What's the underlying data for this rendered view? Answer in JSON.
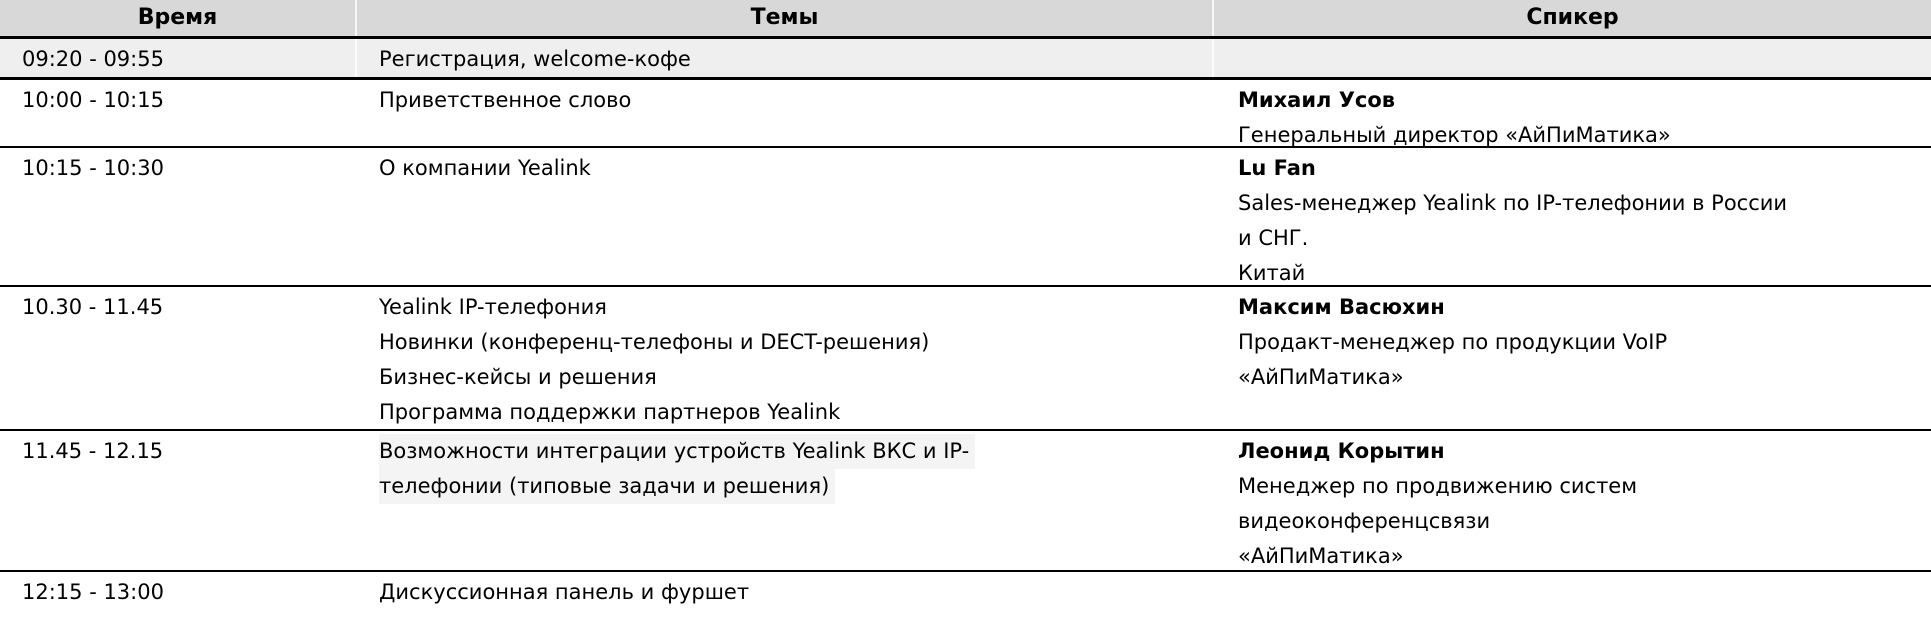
{
  "table": {
    "columns": [
      {
        "key": "time",
        "label": "Время"
      },
      {
        "key": "topics",
        "label": "Темы"
      },
      {
        "key": "speaker",
        "label": "Спикер"
      }
    ],
    "rows": [
      {
        "time": "09:20 - 09:55",
        "topics": [
          "Регистрация, welcome-кофе"
        ],
        "topics_highlighted": false,
        "speaker_name": "",
        "speaker_lines": [],
        "shaded": true
      },
      {
        "time": "10:00 - 10:15",
        "topics": [
          "Приветственное слово"
        ],
        "topics_highlighted": false,
        "speaker_name": "Михаил Усов",
        "speaker_lines": [
          "Генеральный директор «АйПиМатика»"
        ],
        "shaded": false
      },
      {
        "time": "10:15 - 10:30",
        "topics": [
          "О компании Yealink"
        ],
        "topics_highlighted": false,
        "speaker_name": "Lu Fan",
        "speaker_lines": [
          "Sales-менеджер Yealink по IP-телефонии в России",
          "и СНГ.",
          "Китай"
        ],
        "shaded": false
      },
      {
        "time": "10.30 - 11.45",
        "topics": [
          "Yealink IP-телефония",
          "Новинки (конференц-телефоны и DECT-решения)",
          "Бизнес-кейсы и решения",
          "Программа поддержки партнеров Yealink"
        ],
        "topics_highlighted": false,
        "speaker_name": "Максим Васюхин",
        "speaker_lines": [
          "Продакт-менеджер по продукции VoIP",
          "«АйПиМатика»"
        ],
        "shaded": false
      },
      {
        "time": "11.45 - 12.15",
        "topics": [
          "Возможности интеграции устройств Yealink ВКС и IP-",
          "телефонии (типовые задачи и решения)"
        ],
        "topics_highlighted": true,
        "speaker_name": "Леонид Корытин",
        "speaker_lines": [
          "Менеджер по продвижению систем",
          "видеоконференцсвязи",
          "«АйПиМатика»"
        ],
        "shaded": false
      },
      {
        "time": "12:15 - 13:00",
        "topics": [
          "Дискуссионная панель и фуршет"
        ],
        "topics_highlighted": false,
        "speaker_name": "",
        "speaker_lines": [],
        "shaded": false
      }
    ],
    "colors": {
      "header_bg": "#d8d8d8",
      "shaded_row_bg": "#efefef",
      "highlight_bg": "#f4f4f4",
      "border": "#000000",
      "text": "#000000"
    }
  }
}
